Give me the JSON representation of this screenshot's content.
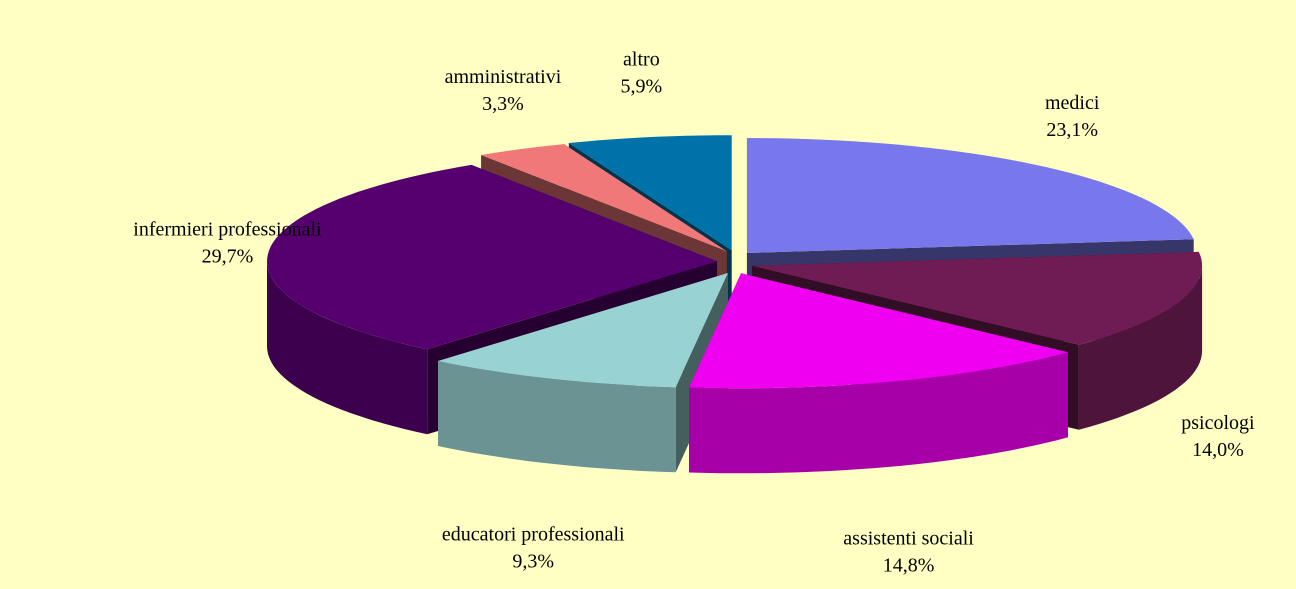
{
  "chart_data": {
    "type": "pie",
    "categories": [
      "medici",
      "psicologi",
      "assistenti sociali",
      "educatori professionali",
      "infermieri  professionali",
      "amministrativi",
      "altro"
    ],
    "values": [
      23.1,
      14.0,
      14.8,
      9.3,
      29.7,
      3.3,
      5.9
    ],
    "value_labels": [
      "23,1%",
      "14,0%",
      "14,8%",
      "9,3%",
      "29,7%",
      "3,3%",
      "5,9%"
    ],
    "colors": [
      "#7878ec",
      "#701c54",
      "#f000f0",
      "#99d2d2",
      "#560070",
      "#f07878",
      "#0072aa"
    ]
  }
}
